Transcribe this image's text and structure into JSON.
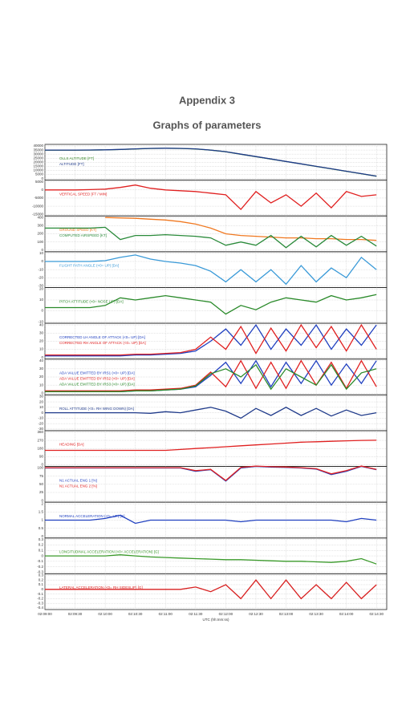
{
  "header": {
    "title": "Appendix 3",
    "subtitle": "Graphs of parameters"
  },
  "chart_data": [
    {
      "type": "line",
      "ylim": [
        0,
        40000
      ],
      "yticks": [
        0,
        5000,
        10000,
        15000,
        20000,
        25000,
        30000,
        35000,
        40000
      ],
      "grid": true,
      "series": [
        {
          "name": "OLLS ALTITUDE [FT]",
          "color": "#3a8a2a",
          "values": [
            34900,
            34900,
            34900,
            35000,
            35200,
            35700,
            36400,
            36900,
            37100,
            36900,
            36400,
            34900,
            32900,
            29900,
            26900,
            23900,
            20900,
            17900,
            14900,
            11900,
            8900,
            5900,
            2900
          ]
        },
        {
          "name": "ALTITUDE [FT]",
          "color": "#1f3a8a",
          "values": [
            35000,
            35000,
            35000,
            35100,
            35300,
            35800,
            36500,
            37000,
            37200,
            37000,
            36500,
            35000,
            33000,
            30000,
            27000,
            24000,
            21000,
            18000,
            15000,
            12000,
            9000,
            6000,
            3000
          ]
        }
      ]
    },
    {
      "type": "line",
      "ylim": [
        -15000,
        5000
      ],
      "yticks": [
        -15000,
        -10000,
        -5000,
        0,
        5000
      ],
      "grid": true,
      "series": [
        {
          "name": "VERTICAL SPEED [FT / MIN]",
          "color": "#e02020",
          "values": [
            0,
            0,
            0,
            200,
            500,
            1500,
            3000,
            1000,
            0,
            -500,
            -1000,
            -2000,
            -3000,
            -12000,
            -1000,
            -8000,
            -3000,
            -10000,
            -2000,
            -11000,
            -1000,
            -4000,
            -3000
          ]
        }
      ]
    },
    {
      "type": "line",
      "ylim": [
        0,
        400
      ],
      "yticks": [
        0,
        100,
        200,
        300,
        400
      ],
      "grid": true,
      "series": [
        {
          "name": "GROUND SPEED [KT]",
          "color": "#f07820",
          "values": [
            null,
            null,
            null,
            null,
            400,
            395,
            390,
            380,
            370,
            350,
            320,
            270,
            200,
            180,
            170,
            160,
            150,
            150,
            140,
            140,
            130,
            130,
            120
          ]
        },
        {
          "name": "COMPUTED AIRSPEED [KT]",
          "color": "#2a8a3a",
          "values": [
            270,
            270,
            270,
            270,
            280,
            130,
            180,
            180,
            190,
            180,
            170,
            150,
            60,
            100,
            60,
            180,
            30,
            170,
            40,
            180,
            60,
            170,
            50
          ]
        }
      ]
    },
    {
      "type": "line",
      "ylim": [
        -30,
        10
      ],
      "yticks": [
        -30,
        -20,
        -10,
        0,
        10
      ],
      "grid": true,
      "series": [
        {
          "name": "FLIGHT PATH ANGLE (<0= UP) [DA]",
          "color": "#3a9ad8",
          "values": [
            0,
            0,
            0,
            0,
            1,
            5,
            8,
            3,
            0,
            -2,
            -5,
            -12,
            -25,
            -10,
            -25,
            -10,
            -28,
            -5,
            -25,
            -8,
            -20,
            5,
            -10
          ]
        }
      ]
    },
    {
      "type": "line",
      "ylim": [
        -10,
        20
      ],
      "yticks": [
        -10,
        0,
        10,
        20
      ],
      "grid": true,
      "series": [
        {
          "name": "PITCH ATTITUDE (<0= NOSE UP) [DA]",
          "color": "#2a8a2a",
          "values": [
            3,
            3,
            3,
            3,
            5,
            12,
            10,
            12,
            14,
            12,
            10,
            8,
            -3,
            5,
            1,
            8,
            12,
            10,
            8,
            14,
            10,
            12,
            15
          ]
        }
      ]
    },
    {
      "type": "line",
      "ylim": [
        0,
        40
      ],
      "yticks": [
        0,
        10,
        20,
        30,
        40
      ],
      "grid": true,
      "series": [
        {
          "name": "CORRECTED LH ANGLE OF ATTACK (<0= UP) [DA]",
          "color": "#2040c0",
          "values": [
            2,
            2,
            2,
            2,
            2,
            2,
            3,
            3,
            4,
            5,
            8,
            20,
            35,
            15,
            40,
            10,
            35,
            15,
            40,
            10,
            35,
            15,
            40
          ]
        },
        {
          "name": "CORRECTED RH ANGLE OF ATTACK (<0= UP) [DA]",
          "color": "#e02020",
          "values": [
            3,
            3,
            3,
            3,
            3,
            3,
            4,
            4,
            5,
            6,
            10,
            25,
            10,
            38,
            5,
            36,
            8,
            40,
            12,
            38,
            8,
            40,
            10
          ]
        }
      ]
    },
    {
      "type": "line",
      "ylim": [
        0,
        40
      ],
      "yticks": [
        0,
        10,
        20,
        30,
        40
      ],
      "grid": true,
      "series": [
        {
          "name": "ADA VALUE EMITTED BY IRS1 (<0= UP) [DA]",
          "color": "#2040c0",
          "values": [
            2,
            2,
            2,
            2,
            2,
            2,
            3,
            3,
            4,
            5,
            8,
            22,
            38,
            12,
            40,
            8,
            38,
            12,
            40,
            10,
            36,
            12,
            40
          ]
        },
        {
          "name": "ADA VALUE EMITTED BY IRS2 (<0= UP) [DA]",
          "color": "#e02020",
          "values": [
            3,
            3,
            3,
            3,
            3,
            3,
            4,
            4,
            5,
            6,
            10,
            26,
            8,
            40,
            6,
            38,
            6,
            40,
            10,
            38,
            6,
            40,
            8
          ]
        },
        {
          "name": "ADA VALUE EMITTED BY IRS3 (<0= UP) [DA]",
          "color": "#2a8a2a",
          "values": [
            2,
            2,
            2,
            2,
            2,
            2,
            3,
            3,
            4,
            5,
            9,
            24,
            30,
            20,
            35,
            5,
            30,
            20,
            10,
            35,
            5,
            25,
            30
          ]
        }
      ]
    },
    {
      "type": "line",
      "ylim": [
        -30,
        30
      ],
      "yticks": [
        -30,
        -20,
        -10,
        0,
        10,
        20,
        30
      ],
      "grid": true,
      "series": [
        {
          "name": "ROLL ATTITUDE (<0= RH WING DOWN) [DA]",
          "color": "#1f3a8a",
          "values": [
            0,
            0,
            0,
            0,
            0,
            0,
            0,
            -1,
            2,
            0,
            5,
            10,
            3,
            -10,
            8,
            -5,
            10,
            -5,
            8,
            -6,
            5,
            -5,
            0
          ]
        }
      ]
    },
    {
      "type": "line",
      "ylim": [
        0,
        360
      ],
      "yticks": [
        0,
        90,
        180,
        270,
        360
      ],
      "grid": true,
      "series": [
        {
          "name": "HEADING [DA]",
          "color": "#e02020",
          "values": [
            160,
            160,
            160,
            160,
            160,
            160,
            160,
            160,
            160,
            170,
            180,
            190,
            200,
            210,
            220,
            230,
            240,
            250,
            255,
            260,
            265,
            270,
            272
          ]
        }
      ]
    },
    {
      "type": "line",
      "ylim": [
        0,
        100
      ],
      "yticks": [
        0,
        25,
        50,
        75,
        100
      ],
      "grid": true,
      "series": [
        {
          "name": "N1 ACTUAL ENG 1 [%]",
          "color": "#2040c0",
          "values": [
            100,
            100,
            100,
            100,
            100,
            100,
            100,
            100,
            100,
            100,
            90,
            95,
            60,
            100,
            105,
            103,
            102,
            100,
            97,
            80,
            90,
            105,
            95
          ]
        },
        {
          "name": "N1 ACTUAL ENG 2 [%]",
          "color": "#e02020",
          "values": [
            101,
            101,
            101,
            101,
            101,
            101,
            101,
            101,
            101,
            101,
            92,
            96,
            62,
            102,
            106,
            104,
            103,
            101,
            98,
            82,
            92,
            106,
            96
          ]
        }
      ]
    },
    {
      "type": "line",
      "ylim": [
        0,
        2
      ],
      "yticks": [
        0,
        0.5,
        1,
        1.5,
        2
      ],
      "grid": true,
      "series": [
        {
          "name": "NORMAL ACCELERATION (<0= UP) [G]",
          "color": "#2040c0",
          "values": [
            1,
            1,
            1,
            1,
            1.1,
            1.3,
            0.8,
            1,
            1,
            1,
            1,
            1,
            1,
            0.9,
            1,
            1,
            1,
            1,
            1,
            1,
            0.9,
            1.1,
            1
          ]
        }
      ]
    },
    {
      "type": "line",
      "ylim": [
        -0.3,
        0.3
      ],
      "yticks": [
        -0.3,
        -0.2,
        -0.1,
        0,
        0.1,
        0.2,
        0.3
      ],
      "grid": true,
      "series": [
        {
          "name": "LONGITUDINAL ACCELERATION (<0= ACCELERATION) [G]",
          "color": "#3a9a2a",
          "values": [
            0,
            0,
            0,
            0,
            0,
            0.02,
            0,
            -0.02,
            -0.03,
            -0.04,
            -0.05,
            -0.06,
            -0.07,
            -0.07,
            -0.08,
            -0.09,
            -0.1,
            -0.1,
            -0.11,
            -0.12,
            -0.1,
            -0.05,
            -0.15
          ]
        }
      ]
    },
    {
      "type": "line",
      "ylim": [
        -0.4,
        0.3
      ],
      "yticks": [
        -0.4,
        -0.3,
        -0.2,
        -0.1,
        0,
        0.1,
        0.2,
        0.3
      ],
      "grid": true,
      "xlabel": "UTC (hh:mm:ss)",
      "categories": [
        "02:09:00",
        null,
        "02:09:30",
        null,
        "02:10:00",
        null,
        "02:10:30",
        null,
        "02:11:00",
        null,
        "02:11:30",
        null,
        "02:12:00",
        null,
        "02:12:30",
        null,
        "02:13:00",
        null,
        "02:13:30",
        null,
        "02:14:00",
        null,
        "02:14:30"
      ],
      "series": [
        {
          "name": "LATERAL ACCELERATION (<0= RH SIDESLIP) [G]",
          "color": "#d82020",
          "values": [
            0,
            0,
            0,
            0,
            0,
            0,
            0,
            0,
            0,
            0,
            0.05,
            -0.05,
            0.1,
            -0.2,
            0.2,
            -0.2,
            0.2,
            -0.2,
            0.1,
            -0.2,
            0.15,
            -0.2,
            0.1
          ]
        }
      ]
    }
  ]
}
